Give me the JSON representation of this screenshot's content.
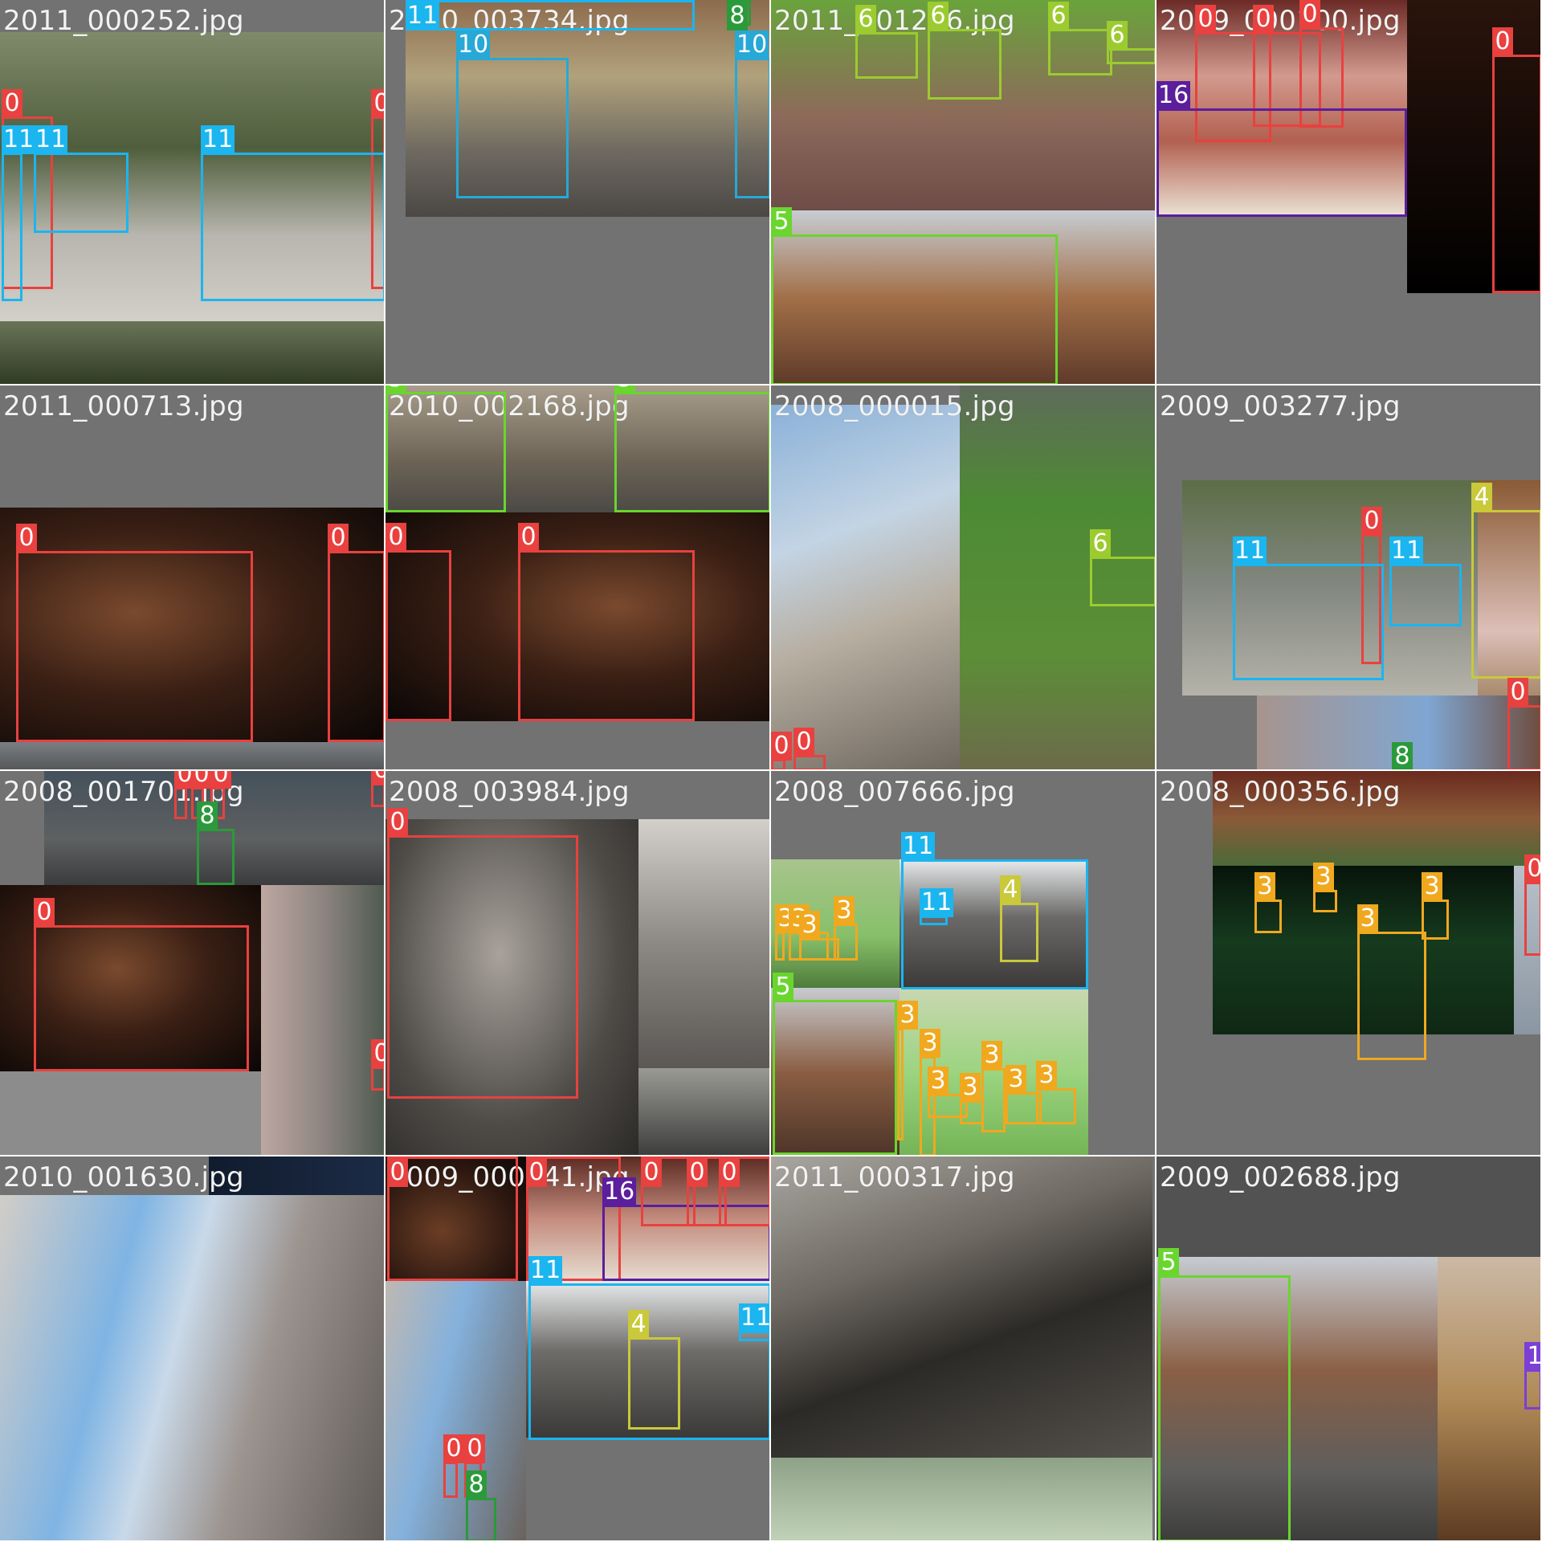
{
  "class_colors": {
    "0": "#e8413f",
    "3": "#f0a81f",
    "4": "#c9c93a",
    "5": "#6ad52f",
    "6": "#9ccb2f",
    "8": "#2a9a3a",
    "10": "#27a8d6",
    "11": "#1bb5ef",
    "16": "#5b1e9c"
  },
  "tiles": [
    {
      "filename": "2011_000252.jpg",
      "labels": [
        "0",
        "0",
        "11",
        "11",
        "11"
      ]
    },
    {
      "filename": "2010_003734.jpg",
      "labels": [
        "11",
        "8",
        "10",
        "10"
      ]
    },
    {
      "filename": "2011_001266.jpg",
      "labels": [
        "6",
        "6",
        "6",
        "6",
        "5"
      ]
    },
    {
      "filename": "2009_000100.jpg",
      "labels": [
        "0",
        "0",
        "0",
        "16",
        "0"
      ]
    },
    {
      "filename": "2011_000713.jpg",
      "labels": [
        "0",
        "0"
      ]
    },
    {
      "filename": "2010_002168.jpg",
      "labels": [
        "5",
        "5",
        "0",
        "0"
      ]
    },
    {
      "filename": "2008_000015.jpg",
      "labels": [
        "6",
        "0",
        "0"
      ]
    },
    {
      "filename": "2009_003277.jpg",
      "labels": [
        "4",
        "0",
        "11",
        "11",
        "0",
        "8"
      ]
    },
    {
      "filename": "2008_001701.jpg",
      "labels": [
        "0",
        "0",
        "0",
        "8",
        "0",
        "0",
        "0"
      ]
    },
    {
      "filename": "2008_003984.jpg",
      "labels": [
        "0"
      ]
    },
    {
      "filename": "2008_007666.jpg",
      "labels": [
        "11",
        "11",
        "4",
        "3",
        "3",
        "3",
        "3",
        "5",
        "3",
        "3",
        "3",
        "3",
        "3",
        "3",
        "3"
      ]
    },
    {
      "filename": "2008_000356.jpg",
      "labels": [
        "3",
        "3",
        "3",
        "3",
        "3",
        "0"
      ]
    },
    {
      "filename": "2010_001630.jpg",
      "labels": []
    },
    {
      "filename": "2009_000141.jpg",
      "labels": [
        "0",
        "0",
        "16",
        "0",
        "0",
        "0",
        "11",
        "4",
        "11",
        "0",
        "0",
        "8"
      ]
    },
    {
      "filename": "2011_000317.jpg",
      "labels": []
    },
    {
      "filename": "2009_002688.jpg",
      "labels": [
        "5",
        "1"
      ]
    }
  ]
}
